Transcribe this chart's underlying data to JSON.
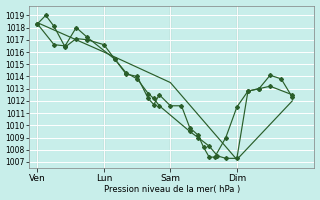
{
  "background_color": "#c8eeea",
  "grid_color": "#b0ddd8",
  "line_color": "#2a5e2a",
  "ylabel_text": "Pression niveau de la mer( hPa )",
  "yticks": [
    1007,
    1008,
    1009,
    1010,
    1011,
    1012,
    1013,
    1014,
    1015,
    1016,
    1017,
    1018,
    1019
  ],
  "ylim": [
    1006.5,
    1019.8
  ],
  "day_labels": [
    "Ven",
    "Lun",
    "Sam",
    "Dim"
  ],
  "day_positions": [
    0.0,
    24.0,
    48.0,
    72.0
  ],
  "xlim": [
    -3.0,
    100.0
  ],
  "series1_x": [
    0,
    3,
    6,
    10,
    14,
    18,
    24,
    28,
    32,
    36,
    40,
    42,
    44,
    48,
    52,
    55,
    58,
    60,
    62,
    64,
    68,
    72,
    76,
    80,
    84,
    88,
    92
  ],
  "series1_y": [
    1018.3,
    1019.0,
    1018.1,
    1016.4,
    1017.1,
    1017.0,
    1016.6,
    1015.4,
    1014.2,
    1014.0,
    1012.2,
    1011.7,
    1012.5,
    1011.6,
    1011.6,
    1009.8,
    1009.2,
    1008.2,
    1007.4,
    1007.4,
    1009.0,
    1011.5,
    1012.8,
    1013.0,
    1014.1,
    1013.8,
    1012.3
  ],
  "series2_x": [
    0,
    6,
    10,
    14,
    18,
    28,
    32,
    36,
    40,
    42,
    44,
    55,
    58,
    62,
    65,
    68,
    72,
    76,
    80,
    84,
    92
  ],
  "series2_y": [
    1018.3,
    1016.6,
    1016.5,
    1018.0,
    1017.2,
    1015.4,
    1014.3,
    1013.8,
    1012.6,
    1012.2,
    1011.6,
    1009.5,
    1009.0,
    1008.3,
    1007.5,
    1007.3,
    1007.3,
    1012.8,
    1013.0,
    1013.2,
    1012.5
  ],
  "series3_x": [
    0,
    24,
    48,
    72,
    92
  ],
  "series3_y": [
    1018.4,
    1016.0,
    1013.5,
    1007.2,
    1012.0
  ]
}
